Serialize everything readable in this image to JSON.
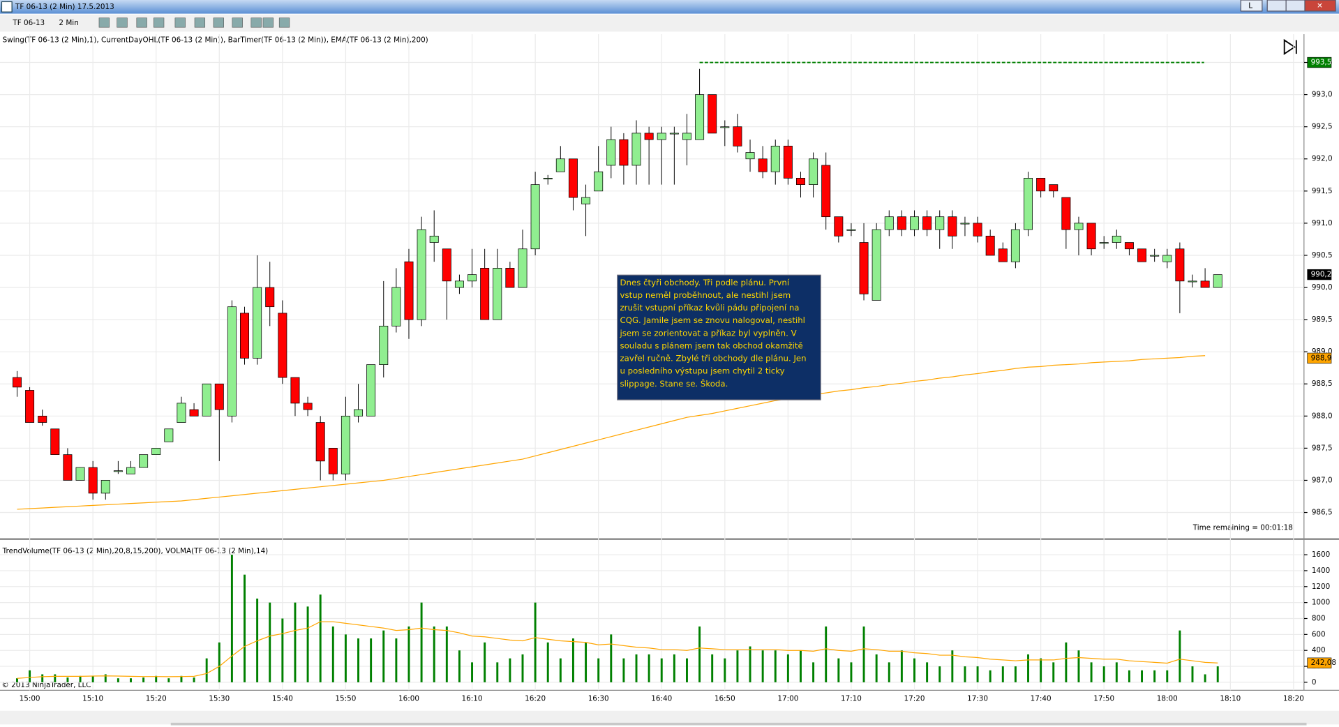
{
  "window": {
    "title": "TF 06-13 (2 Min)  17.5.2013",
    "instrument": "TF 06-13",
    "period": "2 Min",
    "copyright": "© 2013 NinjaTrader, LLC"
  },
  "annotation": {
    "lines": [
      "Dnes čtyři obchody. Tři podle plánu. První",
      "vstup neměl proběhnout, ale nestihl jsem",
      "zrušit vstupní příkaz kvůli pádu připojení na",
      "CQG. Jamile jsem se znovu nalogoval, nestihl",
      "jsem se zorientovat a příkaz byl vyplněn. V",
      "souladu s plánem jsem tak obchod okamžitě",
      "zavřel ručně. Zbylé tři obchody dle plánu. Jen",
      "u posledního výstupu jsem chytil 2 ticky",
      "slippage. Stane se. Škoda."
    ]
  },
  "time_labels": [
    "15:00",
    "15:10",
    "15:20",
    "15:30",
    "15:40",
    "15:50",
    "16:00",
    "16:10",
    "16:20",
    "16:30",
    "16:40",
    "16:50",
    "17:00",
    "17:10",
    "17:20",
    "17:30",
    "17:40",
    "17:50",
    "18:00",
    "18:10",
    "18:20"
  ],
  "chart_data": [
    {
      "type": "candlestick",
      "title": "Swing(TF 06-13 (2 Min),1), CurrentDayOHL(TF 06-13 (2 Min)), BarTimer(TF 06-13 (2 Min)), EMA(TF 06-13 (2 Min),200)",
      "annotation": "Time remaining = 00:01:18",
      "up_color": "#90ee90",
      "down_color": "#ff0000",
      "open": [
        988.6,
        988.4,
        988.0,
        987.8,
        987.4,
        987.0,
        987.2,
        986.8,
        987.15,
        987.1,
        987.2,
        987.4,
        987.6,
        987.9,
        988.1,
        988.0,
        988.5,
        988.0,
        989.6,
        988.9,
        990.0,
        989.6,
        988.6,
        988.2,
        987.9,
        987.5,
        987.1,
        988.0,
        988.0,
        988.8,
        989.4,
        990.4,
        989.5,
        990.7,
        990.6,
        990.0,
        990.1,
        990.3,
        989.5,
        990.3,
        990.0,
        990.6,
        991.7,
        991.8,
        992.0,
        991.3,
        991.5,
        991.9,
        992.3,
        991.9,
        992.4,
        992.3,
        992.4,
        992.3,
        992.3,
        993.0,
        992.5,
        992.5,
        992.0,
        992.0,
        991.8,
        992.2,
        991.7,
        991.6,
        991.9,
        991.1,
        990.9,
        990.7,
        989.8,
        990.9,
        991.1,
        990.9,
        991.1,
        990.9,
        991.1,
        991.0,
        991.0,
        990.8,
        990.6,
        990.4,
        990.9,
        991.7,
        991.6,
        991.4,
        990.9,
        991.0,
        990.7,
        990.7,
        990.7,
        990.6,
        990.5,
        990.4,
        990.6,
        990.1,
        990.1,
        990.0
      ],
      "high": [
        988.7,
        988.45,
        988.1,
        987.8,
        987.5,
        987.2,
        987.3,
        987.0,
        987.3,
        987.3,
        987.4,
        987.5,
        987.8,
        988.3,
        988.2,
        988.5,
        988.5,
        989.8,
        989.7,
        990.5,
        990.4,
        989.8,
        988.6,
        988.3,
        988.0,
        987.5,
        988.3,
        988.5,
        988.8,
        990.1,
        990.3,
        990.6,
        991.1,
        991.2,
        990.6,
        990.2,
        990.6,
        990.6,
        990.6,
        990.4,
        990.9,
        991.8,
        991.75,
        992.2,
        992.0,
        991.6,
        992.2,
        992.5,
        992.4,
        992.6,
        992.5,
        992.5,
        992.5,
        992.7,
        993.4,
        993.0,
        992.6,
        992.7,
        992.3,
        992.2,
        992.3,
        992.3,
        991.8,
        992.1,
        992.1,
        991.1,
        991.0,
        991.0,
        991.0,
        991.2,
        991.2,
        991.2,
        991.2,
        991.2,
        991.2,
        991.1,
        991.1,
        990.9,
        990.7,
        991.0,
        991.8,
        991.7,
        991.6,
        991.4,
        991.1,
        991.0,
        990.8,
        990.9,
        990.7,
        990.6,
        990.6,
        990.6,
        990.7,
        990.2,
        990.3,
        990.2
      ],
      "low": [
        988.3,
        987.9,
        987.85,
        987.4,
        987.0,
        987.0,
        986.7,
        986.7,
        987.1,
        987.1,
        987.2,
        987.4,
        987.6,
        987.9,
        988.0,
        988.0,
        987.3,
        987.9,
        988.8,
        988.8,
        989.4,
        988.5,
        988.0,
        988.0,
        987.0,
        987.0,
        987.0,
        987.9,
        988.0,
        988.6,
        989.3,
        989.2,
        989.4,
        990.4,
        989.5,
        989.9,
        990.0,
        989.5,
        989.5,
        990.0,
        990.0,
        990.5,
        991.6,
        991.8,
        991.2,
        990.8,
        991.5,
        991.7,
        991.6,
        991.6,
        991.6,
        991.6,
        991.6,
        991.9,
        992.3,
        992.4,
        992.2,
        992.1,
        991.8,
        991.7,
        991.6,
        991.6,
        991.4,
        991.4,
        990.9,
        990.7,
        990.8,
        989.8,
        989.8,
        990.8,
        990.8,
        990.8,
        990.8,
        990.6,
        990.6,
        990.8,
        990.7,
        990.5,
        990.4,
        990.3,
        990.8,
        991.4,
        991.4,
        990.6,
        990.5,
        990.5,
        990.6,
        990.6,
        990.5,
        990.4,
        990.4,
        990.3,
        989.6,
        990.0,
        990.0,
        990.0
      ],
      "close": [
        988.45,
        987.9,
        987.9,
        987.4,
        987.0,
        987.2,
        986.8,
        987.0,
        987.15,
        987.2,
        987.4,
        987.5,
        987.8,
        988.2,
        988.0,
        988.5,
        988.1,
        989.7,
        988.9,
        990.0,
        989.7,
        988.6,
        988.2,
        988.1,
        987.3,
        987.1,
        988.0,
        988.1,
        988.8,
        989.4,
        990.0,
        989.5,
        990.9,
        990.8,
        990.1,
        990.1,
        990.2,
        989.5,
        990.3,
        990.0,
        990.6,
        991.6,
        991.7,
        992.0,
        991.4,
        991.4,
        991.8,
        992.3,
        991.9,
        992.4,
        992.3,
        992.4,
        992.4,
        992.4,
        993.0,
        992.4,
        992.5,
        992.2,
        992.1,
        991.8,
        992.2,
        991.7,
        991.6,
        992.0,
        991.1,
        990.8,
        990.9,
        989.9,
        990.9,
        991.1,
        990.9,
        991.1,
        990.9,
        991.1,
        990.8,
        991.0,
        990.8,
        990.5,
        990.4,
        990.9,
        991.7,
        991.5,
        991.5,
        990.9,
        991.0,
        990.6,
        990.7,
        990.8,
        990.6,
        990.4,
        990.5,
        990.5,
        990.1,
        990.1,
        990.0,
        990.2
      ],
      "ema": {
        "color": "#ffa500",
        "values": [
          986.55,
          986.56,
          986.57,
          986.58,
          986.59,
          986.6,
          986.61,
          986.62,
          986.63,
          986.64,
          986.65,
          986.66,
          986.67,
          986.68,
          986.7,
          986.72,
          986.74,
          986.76,
          986.78,
          986.8,
          986.82,
          986.84,
          986.86,
          986.88,
          986.9,
          986.92,
          986.94,
          986.96,
          986.98,
          987.0,
          987.03,
          987.06,
          987.09,
          987.12,
          987.15,
          987.18,
          987.21,
          987.24,
          987.27,
          987.3,
          987.33,
          987.38,
          987.43,
          987.48,
          987.53,
          987.58,
          987.63,
          987.68,
          987.73,
          987.78,
          987.83,
          987.88,
          987.93,
          987.98,
          988.01,
          988.04,
          988.08,
          988.12,
          988.16,
          988.2,
          988.24,
          988.27,
          988.3,
          988.33,
          988.36,
          988.39,
          988.41,
          988.44,
          988.46,
          988.49,
          988.51,
          988.54,
          988.56,
          988.59,
          988.61,
          988.64,
          988.66,
          988.69,
          988.71,
          988.74,
          988.76,
          988.77,
          988.79,
          988.8,
          988.81,
          988.83,
          988.84,
          988.85,
          988.86,
          988.88,
          988.89,
          988.9,
          988.91,
          988.93,
          988.94,
          null
        ]
      },
      "markers": [
        {
          "value": 993.5,
          "label": "993,5",
          "color": "#008000"
        },
        {
          "value": 990.2,
          "label": "990,2",
          "color": "#000000"
        },
        {
          "value": 988.9,
          "label": "988,9",
          "color": "#ffa500"
        }
      ],
      "ylim": [
        986.1,
        993.94
      ],
      "yticks": [
        {
          "value": 986.5,
          "label": "986,5"
        },
        {
          "value": 987,
          "label": "987,0"
        },
        {
          "value": 987.5,
          "label": "987,5"
        },
        {
          "value": 988,
          "label": "988,0"
        },
        {
          "value": 988.5,
          "label": "988,5"
        },
        {
          "value": 989,
          "label": "989,0"
        },
        {
          "value": 989.5,
          "label": "989,5"
        },
        {
          "value": 990,
          "label": "990,0"
        },
        {
          "value": 990.5,
          "label": "990,5"
        },
        {
          "value": 991,
          "label": "991,0"
        },
        {
          "value": 991.5,
          "label": "991,5"
        },
        {
          "value": 992,
          "label": "992,0"
        },
        {
          "value": 992.5,
          "label": "992,5"
        },
        {
          "value": 993,
          "label": "993,0"
        },
        {
          "value": 993.5,
          "label": "993,5"
        }
      ],
      "grid": true
    },
    {
      "type": "bar",
      "title": "TrendVolume(TF 06-13 (2 Min),20,8,15,200), VOLMA(TF 06-13 (2 Min),14)",
      "color": "#008000",
      "values": [
        50,
        150,
        100,
        100,
        60,
        80,
        80,
        100,
        50,
        50,
        60,
        80,
        50,
        80,
        60,
        300,
        500,
        1600,
        1350,
        1050,
        1000,
        800,
        1000,
        950,
        1100,
        700,
        600,
        550,
        550,
        650,
        550,
        700,
        1000,
        700,
        700,
        400,
        250,
        500,
        250,
        300,
        350,
        1000,
        500,
        300,
        550,
        500,
        300,
        600,
        300,
        350,
        350,
        300,
        350,
        300,
        700,
        350,
        300,
        400,
        450,
        400,
        400,
        350,
        400,
        250,
        700,
        300,
        250,
        700,
        350,
        250,
        400,
        300,
        250,
        200,
        400,
        200,
        200,
        150,
        200,
        200,
        350,
        300,
        250,
        500,
        400,
        250,
        200,
        250,
        150,
        150,
        150,
        150,
        650,
        200,
        100,
        200
      ],
      "volma": {
        "color": "#ffa500",
        "values": [
          50,
          60,
          70,
          75,
          75,
          75,
          78,
          80,
          78,
          75,
          72,
          72,
          70,
          72,
          75,
          110,
          200,
          330,
          450,
          520,
          580,
          610,
          650,
          680,
          760,
          760,
          740,
          720,
          700,
          680,
          650,
          660,
          680,
          660,
          650,
          620,
          580,
          570,
          550,
          530,
          520,
          560,
          540,
          520,
          510,
          500,
          470,
          480,
          460,
          440,
          430,
          410,
          410,
          400,
          430,
          420,
          410,
          410,
          410,
          410,
          410,
          400,
          400,
          390,
          420,
          400,
          390,
          420,
          410,
          390,
          390,
          370,
          360,
          340,
          340,
          320,
          310,
          290,
          280,
          270,
          280,
          280,
          280,
          300,
          310,
          300,
          290,
          290,
          270,
          260,
          250,
          240,
          290,
          270,
          250,
          242.08
        ]
      },
      "markers": [
        {
          "value": 242.08,
          "label": "242,08",
          "color": "#ffa500"
        }
      ],
      "ylim": [
        -100,
        1700
      ],
      "yticks": [
        0,
        200,
        400,
        600,
        800,
        1000,
        1200,
        1400,
        1600
      ],
      "grid": true
    }
  ]
}
